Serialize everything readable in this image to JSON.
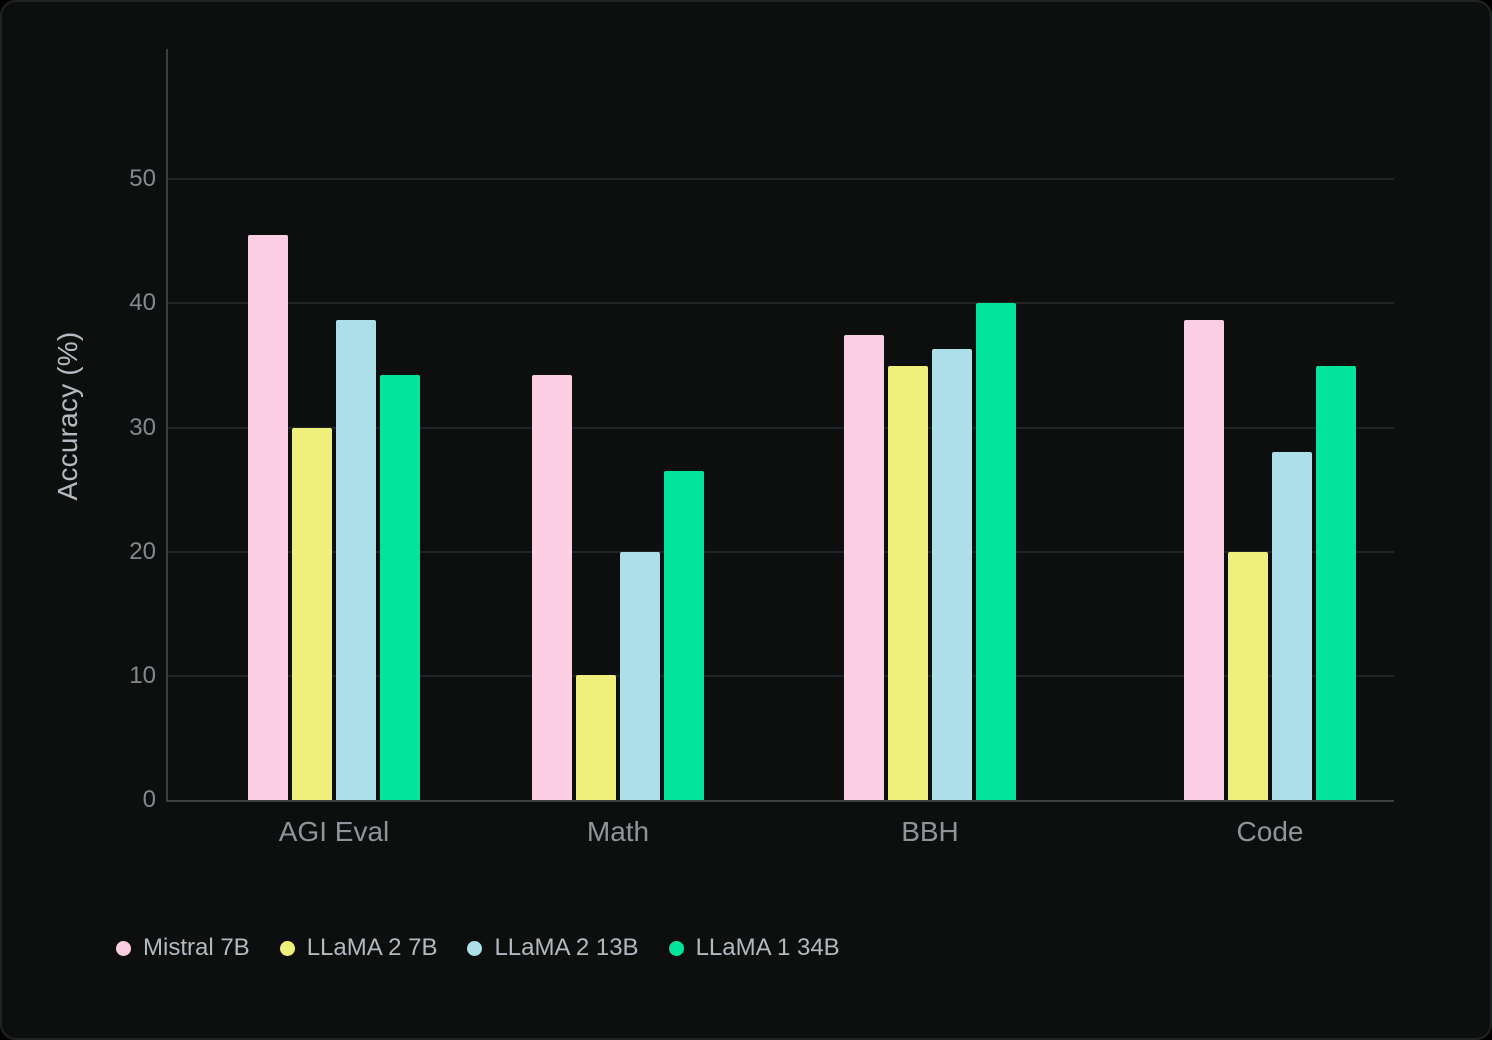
{
  "chart_data": {
    "type": "bar",
    "title": "",
    "xlabel": "",
    "ylabel": "Accuracy (%)",
    "categories": [
      "AGI Eval",
      "Math",
      "BBH",
      "Code"
    ],
    "series": [
      {
        "name": "Mistral 7B",
        "color": "#fccee3",
        "values": [
          45.5,
          34.2,
          37.5,
          38.7
        ]
      },
      {
        "name": "LLaMA 2 7B",
        "color": "#eff07b",
        "values": [
          30.0,
          10.1,
          35.0,
          20.0
        ]
      },
      {
        "name": "LLaMA 2 13B",
        "color": "#addfeb",
        "values": [
          38.7,
          20.0,
          36.3,
          28.0
        ]
      },
      {
        "name": "LLaMA 1 34B",
        "color": "#03e49c",
        "values": [
          34.2,
          26.5,
          40.0,
          35.0
        ]
      }
    ],
    "yticks": [
      0,
      10,
      20,
      30,
      40,
      50
    ],
    "ylim": [
      0,
      60.5
    ],
    "grid": true,
    "legend_position": "bottom-left"
  },
  "theme": {
    "page_bg": "#000000",
    "panel_bg": "#0d0e0e",
    "panel_border": "#202324",
    "grid_color": "#222527",
    "axis_color": "#3c4043",
    "tick_label_color": "#84898f",
    "category_label_color": "#8f949b",
    "legend_text_color": "#b4b9c0",
    "axis_title_color": "#b6bbc2"
  }
}
